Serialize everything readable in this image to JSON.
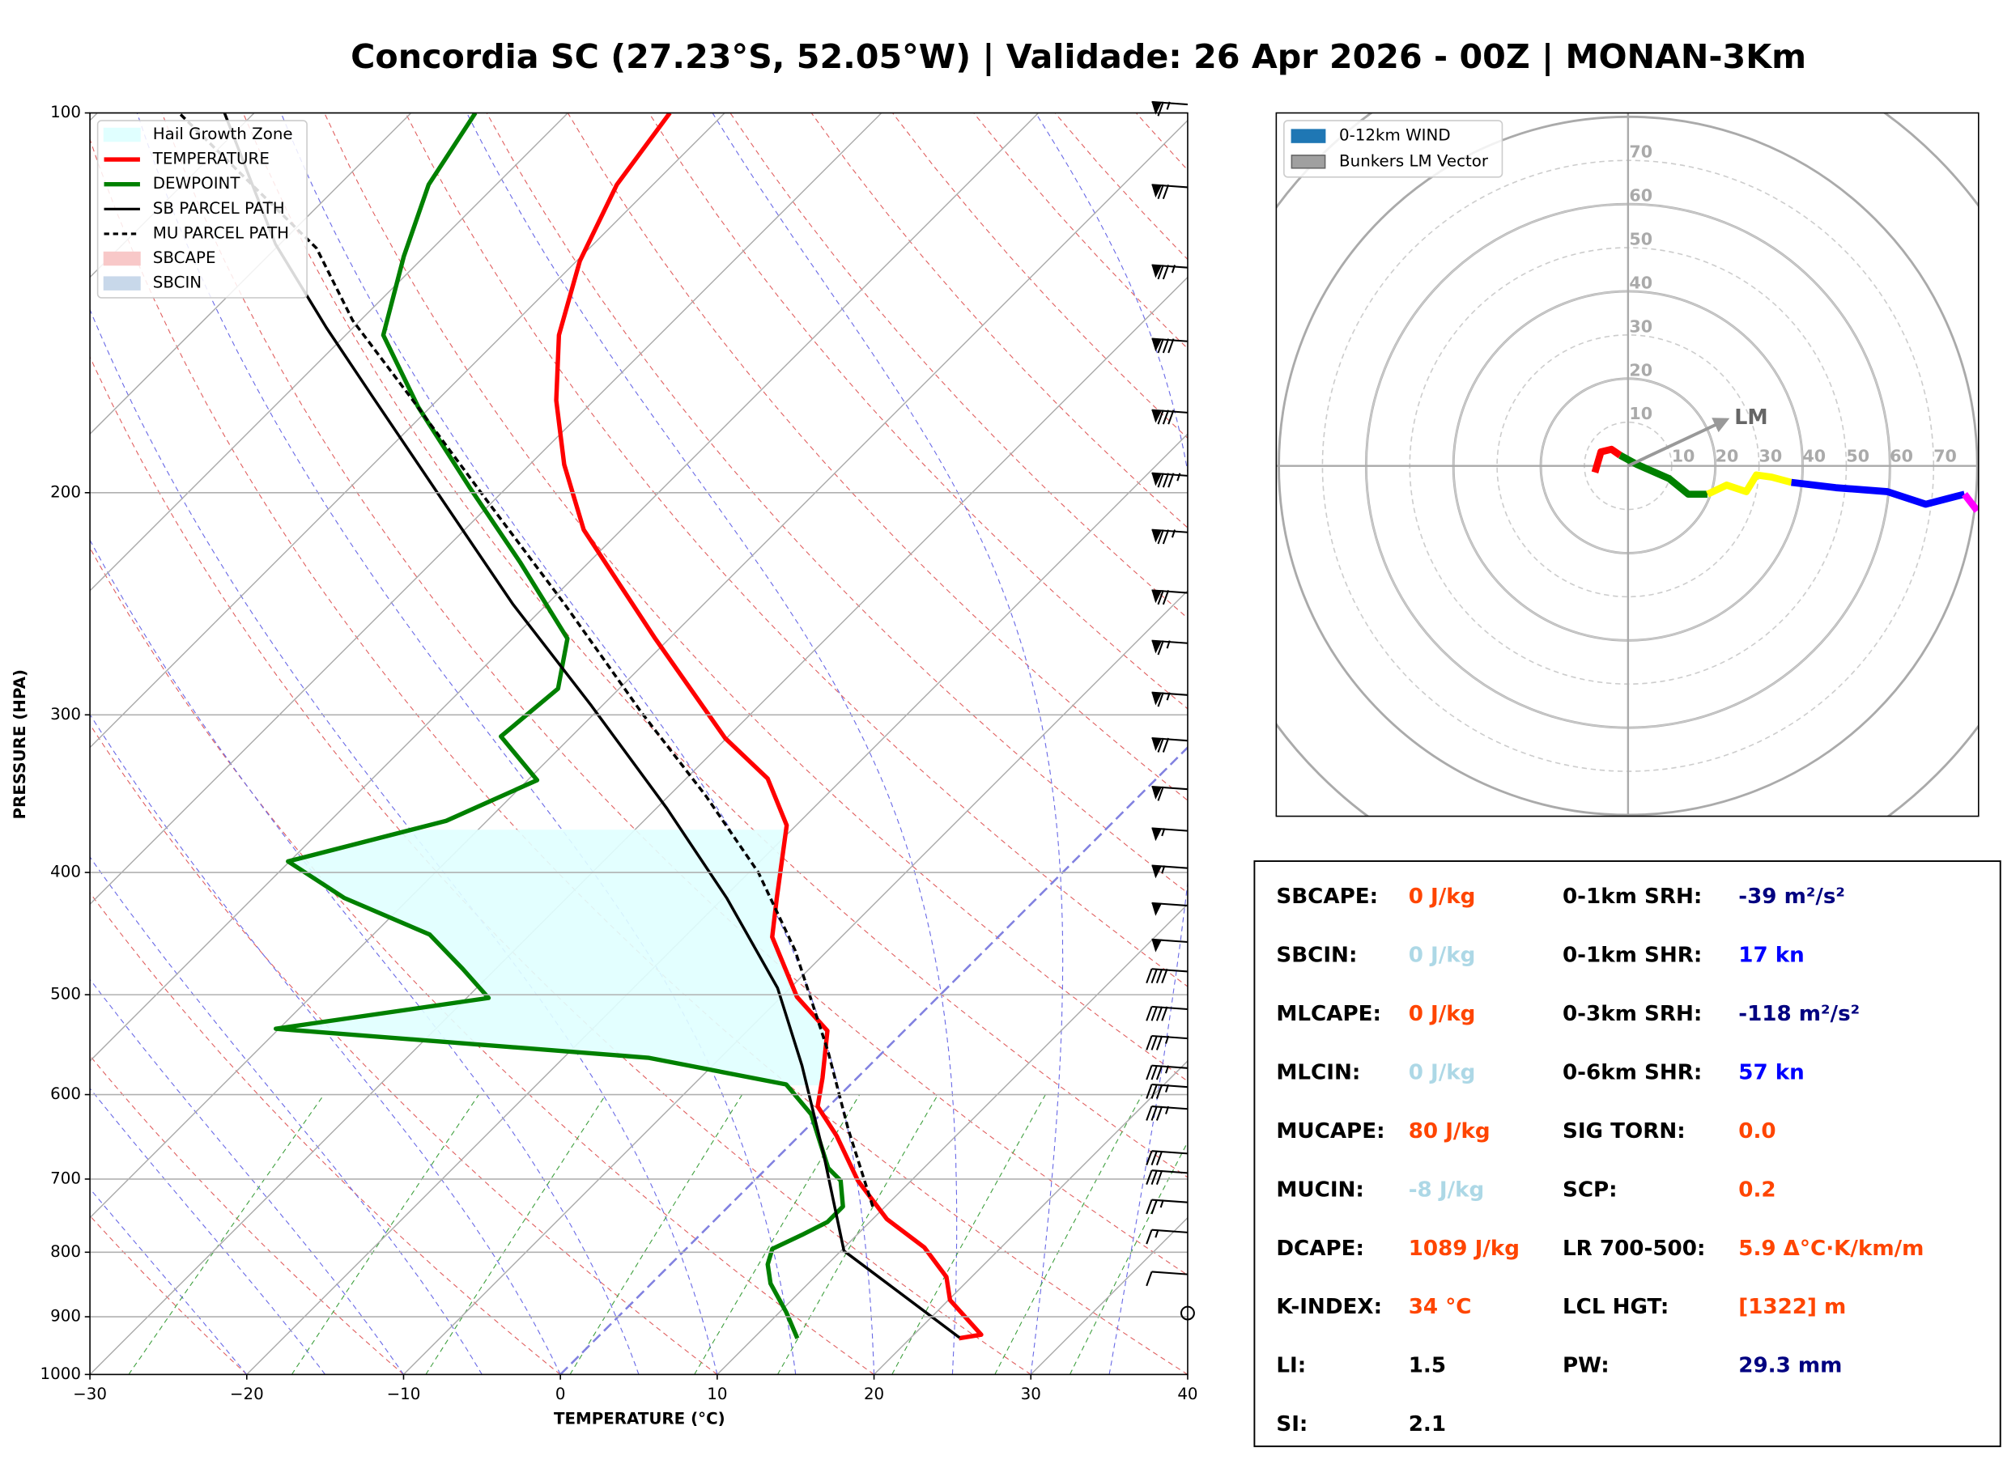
{
  "chart_data": [
    {
      "type": "skewt",
      "title": "Concordia SC (27.23°S, 52.05°W) | Validade: 26 Apr 2026 - 00Z | MONAN-3Km",
      "xlabel": "TEMPERATURE (°C)",
      "ylabel": "PRESSURE (HPA)",
      "xlim": [
        -30,
        40
      ],
      "xticks": [
        {
          "value": -30,
          "label": "−30"
        },
        {
          "value": -20,
          "label": "−20"
        },
        {
          "value": -10,
          "label": "−10"
        },
        0,
        10,
        20,
        30,
        40
      ],
      "ylim": [
        1000,
        100
      ],
      "log_y": true,
      "yticks": [
        100,
        200,
        300,
        400,
        500,
        600,
        700,
        800,
        900,
        1000
      ],
      "grid": true,
      "legend": "upper left",
      "hail_zone": {
        "name": "Hail Growth Zone",
        "color": "#e0ffff",
        "pressure": [
          370,
          590
        ]
      },
      "series": [
        {
          "name": "TEMPERATURE",
          "color": "#ff0000",
          "pressure": [
            936,
            930,
            873,
            837,
            793,
            753,
            702,
            647,
            613,
            582,
            534,
            502,
            450,
            419,
            367,
            337,
            313,
            261,
            214,
            190,
            169,
            150,
            131,
            114,
            100
          ],
          "values": [
            23.1,
            24.3,
            20.1,
            18.4,
            15.1,
            10.9,
            6.6,
            2.4,
            -0.7,
            -2.2,
            -4.9,
            -9.0,
            -14.4,
            -16.6,
            -20.6,
            -24.8,
            -30.1,
            -40.9,
            -52.4,
            -57.8,
            -62.4,
            -66.4,
            -69.8,
            -72.3,
            -73.5
          ]
        },
        {
          "name": "DEWPOINT",
          "color": "#008000",
          "pressure": [
            936,
            892,
            847,
            818,
            795,
            775,
            757,
            736,
            702,
            686,
            622,
            589,
            561,
            532,
            503,
            477,
            448,
            419,
            392,
            364,
            338,
            312,
            286,
            261,
            227,
            198,
            171,
            150,
            130,
            114,
            100
          ],
          "values": [
            12.8,
            10.4,
            7.6,
            6.2,
            5.5,
            6.5,
            7.3,
            7.3,
            5.5,
            3.9,
            -0.6,
            -4.1,
            -14.6,
            -40.2,
            -28.6,
            -32.1,
            -36.4,
            -44.2,
            -50.1,
            -42.6,
            -39.4,
            -44.5,
            -43.9,
            -46.5,
            -54.4,
            -62.4,
            -70.8,
            -77.6,
            -81.3,
            -84.3,
            -85.9
          ]
        },
        {
          "name": "SB PARCEL PATH",
          "color": "#000000",
          "pressure": [
            935,
            798,
            670,
            569,
            494,
            419,
            356,
            295,
            245,
            200,
            168,
            148,
            127,
            100
          ],
          "values": [
            23.1,
            10.2,
            2.8,
            -4.3,
            -10.8,
            -19.8,
            -29.3,
            -40.7,
            -52.2,
            -64.1,
            -74.3,
            -81.7,
            -90.3,
            -101.9
          ]
        },
        {
          "name": "MU PARCEL PATH",
          "color": "#000000",
          "dashed": true,
          "pressure": [
            736,
            639,
            555,
            461,
            400,
            348,
            299,
            245,
            203,
            168,
            146,
            128,
            100
          ],
          "values": [
            9.2,
            2.7,
            -3.5,
            -12.1,
            -19.4,
            -27.6,
            -37.0,
            -48.9,
            -60.4,
            -71.9,
            -80.5,
            -87.4,
            -104.8
          ]
        }
      ],
      "sbcape": {
        "name": "SBCAPE",
        "color": "#f8c8c8"
      },
      "sbcin": {
        "name": "SBCIN",
        "color": "#c8d8ea"
      },
      "wind_barbs": {
        "pressure": [
          98,
          114,
          132,
          151,
          172,
          193,
          214,
          239,
          262,
          288,
          313,
          342,
          369,
          395,
          423,
          452,
          477,
          511,
          539,
          569,
          589,
          613,
          665,
          689,
          727,
          768,
          829,
          894
        ],
        "speed": [
          65,
          70,
          75,
          80,
          80,
          85,
          75,
          70,
          65,
          65,
          70,
          60,
          55,
          55,
          50,
          50,
          40,
          40,
          35,
          35,
          35,
          35,
          30,
          30,
          25,
          15,
          10,
          0
        ]
      }
    },
    {
      "type": "hodograph",
      "rlim": [
        0,
        80
      ],
      "rticks": [
        10,
        20,
        30,
        40,
        50,
        60,
        70
      ],
      "legend": [
        {
          "name": "0-12km WIND",
          "color": "#1f77b4"
        },
        {
          "name": "Bunkers LM Vector",
          "color": "#a0a0a0"
        }
      ],
      "series": [
        {
          "color": "#ff0000",
          "x": [
            -7.6,
            -6.2,
            -3.8,
            -1.8
          ],
          "values": [
            -1.5,
            3.2,
            3.8,
            2.4
          ]
        },
        {
          "color": "#008000",
          "x": [
            -1.8,
            2.1,
            9.4,
            13.8,
            18.2
          ],
          "values": [
            2.4,
            0.3,
            -2.9,
            -6.5,
            -6.5
          ]
        },
        {
          "color": "#ffff00",
          "x": [
            18.2,
            22.6,
            27.1,
            29.4,
            32.9,
            37.4
          ],
          "values": [
            -6.5,
            -4.4,
            -5.9,
            -2.1,
            -2.6,
            -3.8
          ]
        },
        {
          "color": "#0000ff",
          "x": [
            37.4,
            47.6,
            59.4,
            68.2,
            77.1
          ],
          "values": [
            -3.8,
            -5.0,
            -5.9,
            -8.8,
            -6.5
          ]
        },
        {
          "color": "#ff00ff",
          "x": [
            77.1,
            80.0
          ],
          "values": [
            -6.5,
            -10.3
          ]
        }
      ],
      "lm": {
        "label": "LM",
        "u": 22.6,
        "v": 10.6,
        "color": "#999999"
      }
    }
  ],
  "indices": {
    "left": [
      {
        "label": "SBCAPE:",
        "value": "0 J/kg",
        "color": "#ff4500"
      },
      {
        "label": "SBCIN:",
        "value": "0 J/kg",
        "color": "#add8e6"
      },
      {
        "label": "MLCAPE:",
        "value": "0 J/kg",
        "color": "#ff4500"
      },
      {
        "label": "MLCIN:",
        "value": "0 J/kg",
        "color": "#add8e6"
      },
      {
        "label": "MUCAPE:",
        "value": "80 J/kg",
        "color": "#ff4500"
      },
      {
        "label": "MUCIN:",
        "value": "-8 J/kg",
        "color": "#add8e6"
      },
      {
        "label": "DCAPE:",
        "value": "1089 J/kg",
        "color": "#ff4500"
      },
      {
        "label": "K-INDEX:",
        "value": "34 °C",
        "color": "#ff4500"
      },
      {
        "label": "LI:",
        "value": "1.5",
        "color": "#000000"
      },
      {
        "label": "SI:",
        "value": "2.1",
        "color": "#000000"
      }
    ],
    "right": [
      {
        "label": "0-1km SRH:",
        "value": "-39 m²/s²",
        "color": "#000080"
      },
      {
        "label": "0-1km SHR:",
        "value": "17 kn",
        "color": "#0000ff"
      },
      {
        "label": "0-3km SRH:",
        "value": "-118 m²/s²",
        "color": "#000080"
      },
      {
        "label": "0-6km SHR:",
        "value": "57 kn",
        "color": "#0000ff"
      },
      {
        "label": "SIG TORN:",
        "value": "0.0",
        "color": "#ff4500"
      },
      {
        "label": "SCP:",
        "value": "0.2",
        "color": "#ff4500"
      },
      {
        "label": "LR 700-500:",
        "value": "5.9 Δ°C·K/km/m",
        "color": "#ff4500"
      },
      {
        "label": "LCL HGT:",
        "value": "[1322] m",
        "color": "#ff4500"
      },
      {
        "label": "PW:",
        "value": "29.3 mm",
        "color": "#000080"
      }
    ]
  }
}
